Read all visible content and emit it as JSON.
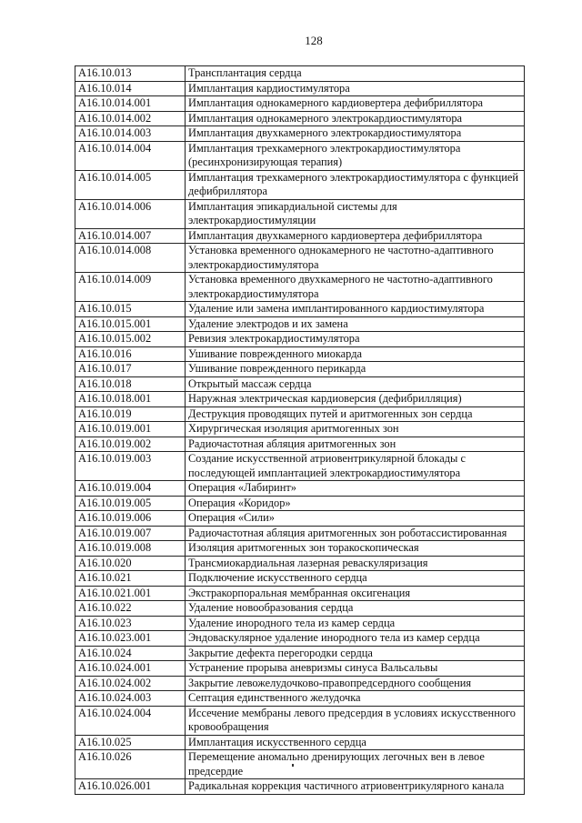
{
  "page_number": "128",
  "rows": [
    {
      "code": "A16.10.013",
      "name": "Трансплантация сердца"
    },
    {
      "code": "A16.10.014",
      "name": "Имплантация кардиостимулятора"
    },
    {
      "code": "A16.10.014.001",
      "name": "Имплантация однокамерного кардиовертера дефибриллятора"
    },
    {
      "code": "A16.10.014.002",
      "name": "Имплантация однокамерного электрокардиостимулятора"
    },
    {
      "code": "A16.10.014.003",
      "name": "Имплантация двухкамерного электрокардиостимулятора"
    },
    {
      "code": "A16.10.014.004",
      "name": "Имплантация трехкамерного электрокардиостимулятора (ресинхронизирующая терапия)"
    },
    {
      "code": "A16.10.014.005",
      "name": "Имплантация трехкамерного электрокардиостимулятора с функцией дефибриллятора"
    },
    {
      "code": "A16.10.014.006",
      "name": "Имплантация эпикардиальной системы для электрокардиостимуляции"
    },
    {
      "code": "A16.10.014.007",
      "name": "Имплантация двухкамерного кардиовертера дефибриллятора"
    },
    {
      "code": "A16.10.014.008",
      "name": "Установка временного однокамерного не частотно-адаптивного электрокардиостимулятора"
    },
    {
      "code": "A16.10.014.009",
      "name": "Установка временного двухкамерного не частотно-адаптивного электрокардиостимулятора"
    },
    {
      "code": "A16.10.015",
      "name": "Удаление или замена имплантированного кардиостимулятора"
    },
    {
      "code": "A16.10.015.001",
      "name": "Удаление электродов и их замена"
    },
    {
      "code": "A16.10.015.002",
      "name": "Ревизия электрокардиостимулятора"
    },
    {
      "code": "A16.10.016",
      "name": "Ушивание поврежденного миокарда"
    },
    {
      "code": "A16.10.017",
      "name": "Ушивание поврежденного перикарда"
    },
    {
      "code": "A16.10.018",
      "name": "Открытый массаж сердца"
    },
    {
      "code": "A16.10.018.001",
      "name": "Наружная электрическая кардиоверсия (дефибрилляция)"
    },
    {
      "code": "A16.10.019",
      "name": "Деструкция проводящих путей и аритмогенных зон сердца"
    },
    {
      "code": "A16.10.019.001",
      "name": "Хирургическая изоляция аритмогенных зон"
    },
    {
      "code": "A16.10.019.002",
      "name": "Радиочастотная абляция аритмогенных зон"
    },
    {
      "code": "A16.10.019.003",
      "name": "Создание искусственной атриовентрикулярной блокады с последующей имплантацией электрокардиостимулятора"
    },
    {
      "code": "A16.10.019.004",
      "name": "Операция «Лабиринт»"
    },
    {
      "code": "A16.10.019.005",
      "name": "Операция «Коридор»"
    },
    {
      "code": "A16.10.019.006",
      "name": "Операция «Сили»"
    },
    {
      "code": "A16.10.019.007",
      "name": "Радиочастотная абляция аритмогенных зон роботассистированная"
    },
    {
      "code": "A16.10.019.008",
      "name": "Изоляция аритмогенных зон торакоскопическая"
    },
    {
      "code": "A16.10.020",
      "name": "Трансмиокардиальная лазерная реваскуляризация"
    },
    {
      "code": "A16.10.021",
      "name": "Подключение искусственного сердца"
    },
    {
      "code": "A16.10.021.001",
      "name": "Экстракорпоральная мембранная оксигенация"
    },
    {
      "code": "A16.10.022",
      "name": "Удаление новообразования сердца"
    },
    {
      "code": "A16.10.023",
      "name": "Удаление инородного тела из камер сердца"
    },
    {
      "code": "A16.10.023.001",
      "name": "Эндоваскулярное удаление инородного тела из камер сердца"
    },
    {
      "code": "A16.10.024",
      "name": "Закрытие дефекта перегородки сердца"
    },
    {
      "code": "A16.10.024.001",
      "name": "Устранение прорыва аневризмы синуса Вальсальвы"
    },
    {
      "code": "A16.10.024.002",
      "name": "Закрытие левожелудочково-правопредсердного сообщения"
    },
    {
      "code": "A16.10.024.003",
      "name": "Септация единственного желудочка"
    },
    {
      "code": "A16.10.024.004",
      "name": "Иссечение мембраны левого предсердия в условиях  искусственного кровообращения"
    },
    {
      "code": "A16.10.025",
      "name": "Имплантация искусственного сердца"
    },
    {
      "code": "A16.10.026",
      "name": "Перемещение аномально дренирующих легочных вен в левое предсердие"
    },
    {
      "code": "A16.10.026.001",
      "name": "Радикальная коррекция частичного атриовентрикулярного канала"
    }
  ]
}
